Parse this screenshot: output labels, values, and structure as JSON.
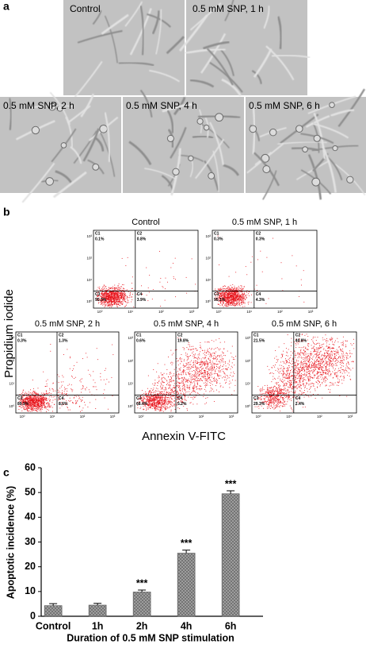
{
  "panel_labels": [
    "a",
    "b",
    "c"
  ],
  "panel_a": {
    "images": [
      {
        "label": "Control"
      },
      {
        "label": "0.5 mM SNP, 1 h"
      },
      {
        "label": "0.5 mM SNP, 2 h"
      },
      {
        "label": "0.5 mM SNP, 4 h"
      },
      {
        "label": "0.5 mM SNP, 6 h"
      }
    ]
  },
  "panel_b": {
    "y_label": "Propidium iodide",
    "x_label": "Annexin V-FITC",
    "axis_ticks": [
      "10⁰",
      "10¹",
      "10²",
      "10³"
    ],
    "quadrant_names": [
      "C1",
      "C2",
      "C3",
      "C4"
    ],
    "plots": [
      {
        "title": "Control",
        "quadrants": [
          "0.1%",
          "0.8%",
          "95.3%",
          "3.9%"
        ]
      },
      {
        "title": "0.5 mM SNP, 1 h",
        "quadrants": [
          "0.3%",
          "0.3%",
          "95.1%",
          "4.3%"
        ]
      },
      {
        "title": "0.5 mM SNP, 2 h",
        "quadrants": [
          "0.3%",
          "1.3%",
          "89.9%",
          "8.6%"
        ]
      },
      {
        "title": "0.5 mM SNP, 4 h",
        "quadrants": [
          "0.6%",
          "19.8%",
          "68.4%",
          "5.2%"
        ]
      },
      {
        "title": "0.5 mM SNP, 6 h",
        "quadrants": [
          "21.5%",
          "40.8%",
          "29.3%",
          "2.4%"
        ]
      }
    ]
  },
  "chart_data": {
    "type": "bar",
    "y_label": "Apoptotic incidence (%)",
    "x_label": "Duration of 0.5 mM SNP stimulation",
    "categories": [
      "Control",
      "1h",
      "2h",
      "4h",
      "6h"
    ],
    "values": [
      4.3,
      4.5,
      9.8,
      25.5,
      49.5
    ],
    "errors": [
      0.8,
      0.7,
      0.8,
      1.2,
      1.2
    ],
    "annotations": [
      null,
      null,
      "***",
      "***",
      "***"
    ],
    "color": "#9a9a9a",
    "ylim": [
      0,
      60
    ],
    "yticks": [
      0,
      10,
      20,
      30,
      40,
      50,
      60
    ]
  }
}
